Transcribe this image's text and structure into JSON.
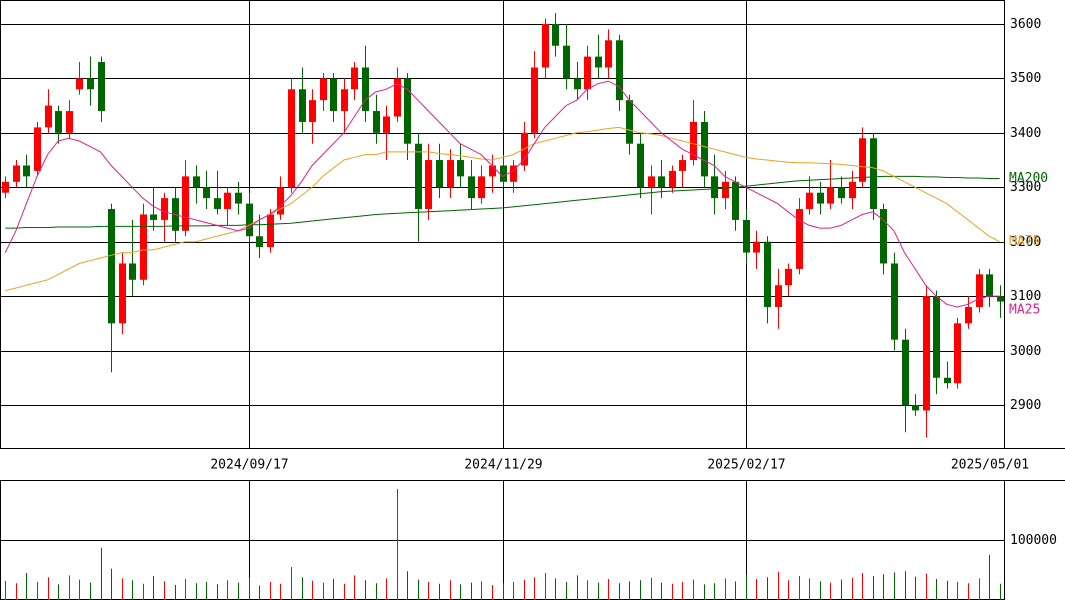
{
  "chart_data": {
    "type": "candlestick",
    "categories": [
      null,
      null,
      null,
      null,
      null,
      null,
      null,
      null,
      null,
      null,
      null,
      null,
      null,
      null,
      null,
      null,
      null,
      null,
      null,
      null,
      null,
      null,
      null,
      "2024/09/17",
      null,
      null,
      null,
      null,
      null,
      null,
      null,
      null,
      null,
      null,
      null,
      null,
      null,
      null,
      null,
      null,
      null,
      null,
      null,
      null,
      null,
      null,
      null,
      "2024/11/29",
      null,
      null,
      null,
      null,
      null,
      null,
      null,
      null,
      null,
      null,
      null,
      null,
      null,
      null,
      null,
      null,
      null,
      null,
      null,
      null,
      null,
      null,
      "2025/02/17",
      null,
      null,
      null,
      null,
      null,
      null,
      null,
      null,
      null,
      null,
      null,
      null,
      null,
      null,
      null,
      null,
      null,
      null,
      null,
      null,
      null,
      null,
      null,
      "2025/05/01"
    ],
    "ohlc": [
      [
        3290,
        3320,
        3280,
        3310
      ],
      [
        3310,
        3350,
        3300,
        3340
      ],
      [
        3340,
        3360,
        3300,
        3320
      ],
      [
        3330,
        3420,
        3320,
        3410
      ],
      [
        3410,
        3480,
        3400,
        3450
      ],
      [
        3440,
        3450,
        3380,
        3400
      ],
      [
        3400,
        3460,
        3390,
        3440
      ],
      [
        3480,
        3530,
        3470,
        3500
      ],
      [
        3500,
        3540,
        3450,
        3480
      ],
      [
        3530,
        3540,
        3420,
        3440
      ],
      [
        3260,
        3270,
        2960,
        3050
      ],
      [
        3050,
        3180,
        3030,
        3160
      ],
      [
        3160,
        3240,
        3100,
        3130
      ],
      [
        3130,
        3270,
        3120,
        3250
      ],
      [
        3250,
        3300,
        3220,
        3240
      ],
      [
        3240,
        3290,
        3200,
        3280
      ],
      [
        3280,
        3300,
        3200,
        3220
      ],
      [
        3220,
        3350,
        3210,
        3320
      ],
      [
        3320,
        3340,
        3270,
        3300
      ],
      [
        3300,
        3330,
        3260,
        3280
      ],
      [
        3280,
        3330,
        3250,
        3260
      ],
      [
        3260,
        3300,
        3230,
        3290
      ],
      [
        3290,
        3310,
        3250,
        3270
      ],
      [
        3270,
        3290,
        3200,
        3210
      ],
      [
        3210,
        3250,
        3170,
        3190
      ],
      [
        3190,
        3260,
        3180,
        3250
      ],
      [
        3250,
        3320,
        3240,
        3300
      ],
      [
        3300,
        3500,
        3290,
        3480
      ],
      [
        3480,
        3520,
        3400,
        3420
      ],
      [
        3420,
        3480,
        3380,
        3460
      ],
      [
        3460,
        3510,
        3440,
        3500
      ],
      [
        3500,
        3510,
        3420,
        3440
      ],
      [
        3440,
        3500,
        3400,
        3480
      ],
      [
        3480,
        3530,
        3460,
        3520
      ],
      [
        3520,
        3560,
        3420,
        3440
      ],
      [
        3440,
        3470,
        3380,
        3400
      ],
      [
        3400,
        3450,
        3350,
        3430
      ],
      [
        3430,
        3520,
        3420,
        3500
      ],
      [
        3500,
        3510,
        3350,
        3380
      ],
      [
        3380,
        3400,
        3200,
        3260
      ],
      [
        3260,
        3380,
        3240,
        3350
      ],
      [
        3350,
        3380,
        3280,
        3300
      ],
      [
        3300,
        3370,
        3280,
        3350
      ],
      [
        3350,
        3380,
        3300,
        3320
      ],
      [
        3320,
        3350,
        3260,
        3280
      ],
      [
        3280,
        3340,
        3270,
        3320
      ],
      [
        3320,
        3360,
        3290,
        3340
      ],
      [
        3340,
        3360,
        3300,
        3310
      ],
      [
        3310,
        3350,
        3290,
        3340
      ],
      [
        3340,
        3420,
        3330,
        3400
      ],
      [
        3400,
        3550,
        3390,
        3520
      ],
      [
        3520,
        3610,
        3500,
        3600
      ],
      [
        3600,
        3620,
        3540,
        3560
      ],
      [
        3560,
        3600,
        3480,
        3500
      ],
      [
        3500,
        3530,
        3460,
        3480
      ],
      [
        3480,
        3560,
        3460,
        3540
      ],
      [
        3540,
        3580,
        3500,
        3520
      ],
      [
        3520,
        3590,
        3500,
        3570
      ],
      [
        3570,
        3580,
        3440,
        3460
      ],
      [
        3460,
        3470,
        3360,
        3380
      ],
      [
        3380,
        3400,
        3280,
        3300
      ],
      [
        3300,
        3340,
        3250,
        3320
      ],
      [
        3320,
        3350,
        3280,
        3300
      ],
      [
        3300,
        3340,
        3290,
        3330
      ],
      [
        3330,
        3360,
        3300,
        3350
      ],
      [
        3350,
        3460,
        3340,
        3420
      ],
      [
        3420,
        3440,
        3300,
        3320
      ],
      [
        3320,
        3360,
        3250,
        3280
      ],
      [
        3280,
        3330,
        3260,
        3310
      ],
      [
        3310,
        3320,
        3220,
        3240
      ],
      [
        3240,
        3260,
        3160,
        3180
      ],
      [
        3180,
        3220,
        3150,
        3200
      ],
      [
        3200,
        3210,
        3050,
        3080
      ],
      [
        3080,
        3150,
        3040,
        3120
      ],
      [
        3120,
        3160,
        3100,
        3150
      ],
      [
        3150,
        3280,
        3140,
        3260
      ],
      [
        3260,
        3320,
        3250,
        3290
      ],
      [
        3290,
        3310,
        3250,
        3270
      ],
      [
        3270,
        3350,
        3260,
        3300
      ],
      [
        3300,
        3320,
        3270,
        3280
      ],
      [
        3280,
        3330,
        3260,
        3310
      ],
      [
        3310,
        3410,
        3300,
        3390
      ],
      [
        3390,
        3400,
        3240,
        3260
      ],
      [
        3260,
        3270,
        3140,
        3160
      ],
      [
        3160,
        3180,
        3000,
        3020
      ],
      [
        3020,
        3040,
        2850,
        2900
      ],
      [
        2900,
        2920,
        2880,
        2890
      ],
      [
        2890,
        3120,
        2840,
        3100
      ],
      [
        3100,
        3110,
        2920,
        2950
      ],
      [
        2950,
        2980,
        2930,
        2940
      ],
      [
        2940,
        3060,
        2930,
        3050
      ],
      [
        3050,
        3100,
        3040,
        3080
      ],
      [
        3080,
        3150,
        3070,
        3140
      ],
      [
        3140,
        3150,
        3080,
        3100
      ],
      [
        3100,
        3120,
        3060,
        3090
      ]
    ],
    "up_color": "#ff0000",
    "down_color": "#006600",
    "series": [
      {
        "name": "MA200",
        "color": "#006600",
        "values": [
          3225,
          3225,
          3226,
          3226,
          3226,
          3227,
          3227,
          3227,
          3227,
          3228,
          3228,
          3228,
          3228,
          3228,
          3228,
          3228,
          3229,
          3229,
          3229,
          3229,
          3230,
          3230,
          3230,
          3231,
          3231,
          3232,
          3233,
          3234,
          3236,
          3238,
          3240,
          3242,
          3244,
          3246,
          3248,
          3250,
          3251,
          3252,
          3253,
          3254,
          3255,
          3256,
          3257,
          3258,
          3259,
          3260,
          3261,
          3262,
          3264,
          3266,
          3268,
          3270,
          3272,
          3274,
          3276,
          3278,
          3280,
          3282,
          3284,
          3286,
          3288,
          3290,
          3292,
          3293,
          3294,
          3295,
          3296,
          3297,
          3298,
          3300,
          3302,
          3304,
          3306,
          3308,
          3310,
          3312,
          3313,
          3314,
          3315,
          3316,
          3317,
          3318,
          3319,
          3320,
          3320,
          3320,
          3320,
          3319,
          3319,
          3318,
          3318,
          3317,
          3317,
          3316,
          3316
        ]
      },
      {
        "name": "MA75",
        "color": "#f0a020",
        "values": [
          3110,
          3115,
          3120,
          3125,
          3130,
          3140,
          3150,
          3160,
          3165,
          3170,
          3175,
          3180,
          3180,
          3185,
          3185,
          3190,
          3195,
          3200,
          3200,
          3205,
          3210,
          3215,
          3220,
          3230,
          3240,
          3250,
          3260,
          3270,
          3285,
          3300,
          3320,
          3335,
          3350,
          3355,
          3360,
          3360,
          3365,
          3365,
          3365,
          3365,
          3365,
          3362,
          3360,
          3358,
          3355,
          3352,
          3350,
          3355,
          3360,
          3370,
          3380,
          3385,
          3390,
          3395,
          3400,
          3402,
          3405,
          3408,
          3410,
          3405,
          3400,
          3398,
          3395,
          3390,
          3385,
          3380,
          3375,
          3370,
          3365,
          3360,
          3355,
          3352,
          3350,
          3348,
          3346,
          3345,
          3345,
          3344,
          3343,
          3342,
          3340,
          3338,
          3336,
          3330,
          3320,
          3310,
          3300,
          3290,
          3280,
          3270,
          3255,
          3240,
          3225,
          3210,
          3200
        ]
      },
      {
        "name": "MA25",
        "color": "#e0208c",
        "values": [
          3180,
          3220,
          3270,
          3320,
          3360,
          3385,
          3390,
          3385,
          3375,
          3365,
          3340,
          3320,
          3300,
          3280,
          3265,
          3255,
          3250,
          3245,
          3240,
          3235,
          3230,
          3225,
          3220,
          3225,
          3240,
          3250,
          3265,
          3285,
          3310,
          3340,
          3360,
          3380,
          3400,
          3430,
          3460,
          3475,
          3480,
          3490,
          3480,
          3460,
          3440,
          3420,
          3400,
          3380,
          3370,
          3360,
          3340,
          3320,
          3330,
          3350,
          3380,
          3410,
          3430,
          3450,
          3460,
          3480,
          3490,
          3495,
          3485,
          3460,
          3440,
          3420,
          3400,
          3385,
          3370,
          3360,
          3350,
          3340,
          3320,
          3310,
          3300,
          3290,
          3280,
          3270,
          3255,
          3240,
          3230,
          3225,
          3225,
          3230,
          3240,
          3250,
          3255,
          3240,
          3220,
          3180,
          3150,
          3120,
          3100,
          3085,
          3080,
          3085,
          3095,
          3100,
          3100
        ]
      }
    ],
    "volume": [
      32000,
      28000,
      45000,
      30000,
      38000,
      26000,
      41000,
      34000,
      29000,
      87000,
      52000,
      36000,
      33000,
      27000,
      40000,
      31000,
      25000,
      35000,
      28000,
      30000,
      26000,
      33000,
      29000,
      37000,
      24000,
      30000,
      27000,
      55000,
      38000,
      32000,
      29000,
      35000,
      27000,
      41000,
      33000,
      28000,
      36000,
      185000,
      48000,
      34000,
      30000,
      27000,
      33000,
      26000,
      29000,
      31000,
      25000,
      28000,
      30000,
      34000,
      38000,
      45000,
      36000,
      30000,
      41000,
      33000,
      29000,
      35000,
      28000,
      31000,
      33000,
      37000,
      29000,
      27000,
      30000,
      34000,
      26000,
      28000,
      36000,
      31000,
      42000,
      35000,
      38000,
      47000,
      33000,
      40000,
      36000,
      31000,
      29000,
      34000,
      37000,
      45000,
      40000,
      43000,
      46000,
      48000,
      39000,
      44000,
      35000,
      32000,
      30000,
      28000,
      36000,
      75000,
      27000
    ],
    "ylim": [
      2821,
      3644
    ],
    "yticks": [
      2900,
      3000,
      3100,
      3200,
      3300,
      3400,
      3500,
      3600
    ],
    "volume_ylim": [
      0,
      200000
    ],
    "volume_yticks": [
      100000
    ],
    "grid": true
  }
}
